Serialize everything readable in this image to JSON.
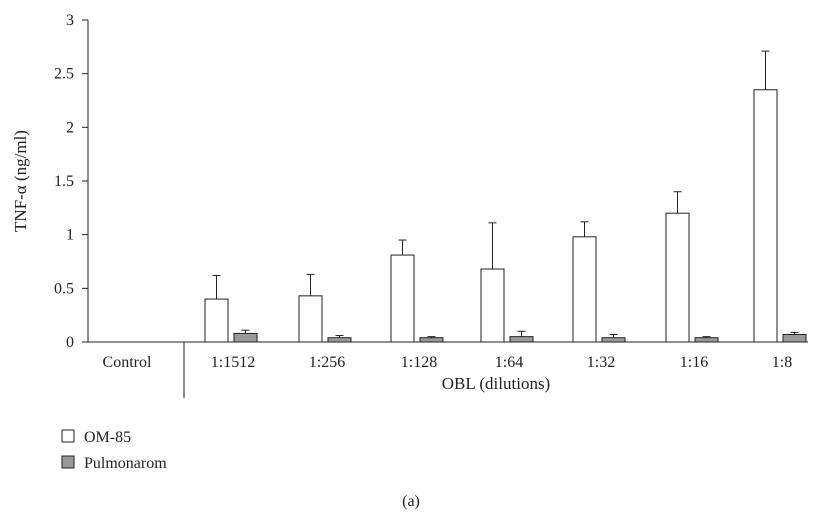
{
  "chart_data": {
    "type": "bar",
    "ylabel": "TNF-α (ng/ml)",
    "group_label": "OBL (dilutions)",
    "caption": "(a)",
    "categories": [
      "Control",
      "1:1512",
      "1:256",
      "1:128",
      "1:64",
      "1:32",
      "1:16",
      "1:8"
    ],
    "y_ticks": [
      "0",
      "0.5",
      "1",
      "1.5",
      "2",
      "2.5",
      "3"
    ],
    "ylim": [
      0,
      3
    ],
    "series": [
      {
        "name": "OM-85",
        "color": "#ffffff",
        "values": [
          0,
          0.4,
          0.43,
          0.81,
          0.68,
          0.98,
          1.2,
          2.35
        ],
        "errors": [
          0,
          0.22,
          0.2,
          0.14,
          0.43,
          0.14,
          0.2,
          0.36
        ]
      },
      {
        "name": "Pulmonarom",
        "color": "#9a9a9a",
        "values": [
          0,
          0.08,
          0.04,
          0.04,
          0.05,
          0.04,
          0.04,
          0.07
        ],
        "errors": [
          0,
          0.03,
          0.02,
          0.01,
          0.05,
          0.03,
          0.01,
          0.02
        ]
      }
    ],
    "legend_position": "bottom-left"
  }
}
